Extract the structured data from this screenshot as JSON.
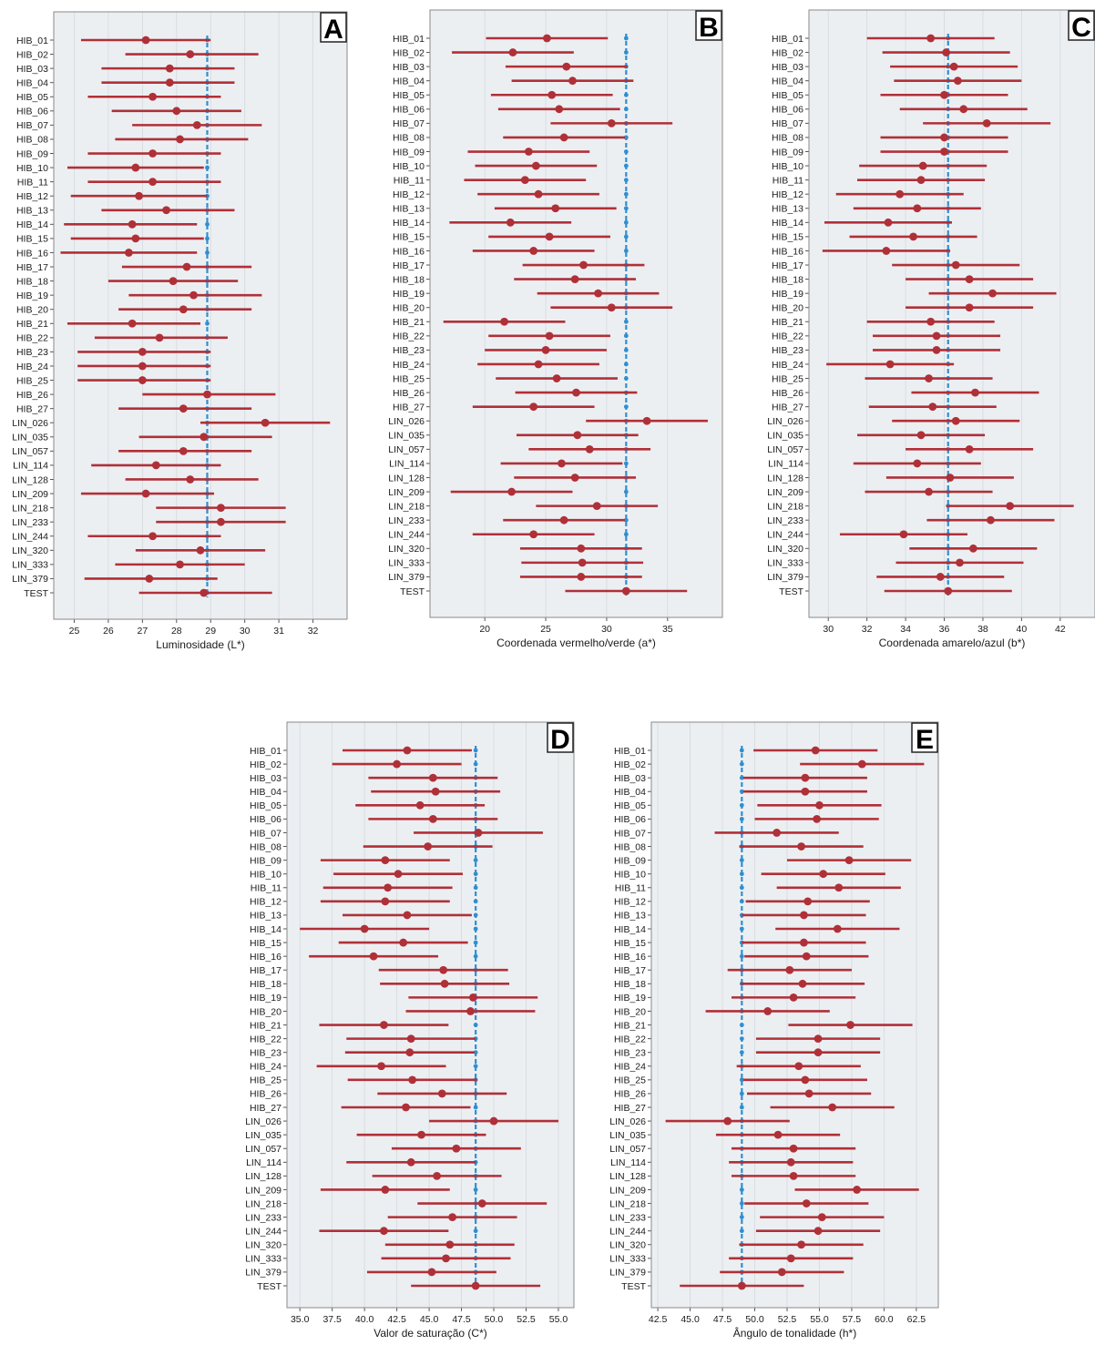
{
  "figure": {
    "background": "#ffffff",
    "plot_background": "#eceff2",
    "grid_color": "#d4d8dd",
    "point_color": "#b03038",
    "ref_color": "#2f8fd0",
    "frame_color": "#8a8a8a"
  },
  "chart_data": [
    {
      "type": "forest",
      "letter": "A",
      "xlabel": "Luminosidade (L*)",
      "xlim": [
        24.4,
        33.0
      ],
      "xticks": [
        25,
        26,
        27,
        28,
        29,
        30,
        31,
        32
      ],
      "tick_labels": [
        "25",
        "26",
        "27",
        "28",
        "29",
        "30",
        "31",
        "32"
      ],
      "reference": 28.9,
      "categories": [
        "HIB_01",
        "HIB_02",
        "HIB_03",
        "HIB_04",
        "HIB_05",
        "HIB_06",
        "HIB_07",
        "HIB_08",
        "HIB_09",
        "HIB_10",
        "HIB_11",
        "HIB_12",
        "HIB_13",
        "HIB_14",
        "HIB_15",
        "HIB_16",
        "HIB_17",
        "HIB_18",
        "HIB_19",
        "HIB_20",
        "HIB_21",
        "HIB_22",
        "HIB_23",
        "HIB_24",
        "HIB_25",
        "HIB_26",
        "HIB_27",
        "LIN_026",
        "LIN_035",
        "LIN_057",
        "LIN_114",
        "LIN_128",
        "LIN_209",
        "LIN_218",
        "LIN_233",
        "LIN_244",
        "LIN_320",
        "LIN_333",
        "LIN_379",
        "TEST"
      ],
      "estimate": [
        27.1,
        28.4,
        27.8,
        27.8,
        27.3,
        28.0,
        28.6,
        28.1,
        27.3,
        26.8,
        27.3,
        26.9,
        27.7,
        26.7,
        26.8,
        26.6,
        28.3,
        27.9,
        28.5,
        28.2,
        26.7,
        27.5,
        27.0,
        27.0,
        27.0,
        28.9,
        28.2,
        30.6,
        28.8,
        28.2,
        27.4,
        28.4,
        27.1,
        29.3,
        29.3,
        27.3,
        28.7,
        28.1,
        27.2,
        28.8
      ],
      "lower": [
        25.2,
        26.5,
        25.8,
        25.8,
        25.4,
        26.1,
        26.7,
        26.2,
        25.4,
        24.8,
        25.4,
        24.9,
        25.8,
        24.7,
        24.9,
        24.6,
        26.4,
        26.0,
        26.6,
        26.3,
        24.8,
        25.6,
        25.1,
        25.1,
        25.1,
        27.0,
        26.3,
        28.7,
        26.9,
        26.3,
        25.5,
        26.5,
        25.2,
        27.4,
        27.4,
        25.4,
        26.8,
        26.2,
        25.3,
        26.9
      ],
      "upper": [
        29.0,
        30.4,
        29.7,
        29.7,
        29.3,
        29.9,
        30.5,
        30.1,
        29.3,
        28.8,
        29.3,
        28.9,
        29.7,
        28.6,
        28.8,
        28.6,
        30.2,
        29.8,
        30.5,
        30.2,
        28.7,
        29.5,
        29.0,
        29.0,
        29.0,
        30.9,
        30.2,
        32.5,
        30.8,
        30.2,
        29.3,
        30.4,
        29.1,
        31.2,
        31.2,
        29.3,
        30.6,
        30.0,
        29.2,
        30.8
      ]
    },
    {
      "type": "forest",
      "letter": "B",
      "xlabel": "Coordenada vermelho/verde (a*)",
      "xlim": [
        15.5,
        39.5
      ],
      "xticks": [
        20,
        25,
        30,
        35
      ],
      "tick_labels": [
        "20",
        "25",
        "30",
        "35"
      ],
      "reference": 31.6,
      "categories": [
        "HIB_01",
        "HIB_02",
        "HIB_03",
        "HIB_04",
        "HIB_05",
        "HIB_06",
        "HIB_07",
        "HIB_08",
        "HIB_09",
        "HIB_10",
        "HIB_11",
        "HIB_12",
        "HIB_13",
        "HIB_14",
        "HIB_15",
        "HIB_16",
        "HIB_17",
        "HIB_18",
        "HIB_19",
        "HIB_20",
        "HIB_21",
        "HIB_22",
        "HIB_23",
        "HIB_24",
        "HIB_25",
        "HIB_26",
        "HIB_27",
        "LIN_026",
        "LIN_035",
        "LIN_057",
        "LIN_114",
        "LIN_128",
        "LIN_209",
        "LIN_218",
        "LIN_233",
        "LIN_244",
        "LIN_320",
        "LIN_333",
        "LIN_379",
        "TEST"
      ],
      "estimate": [
        25.1,
        22.3,
        26.7,
        27.2,
        25.5,
        26.1,
        30.4,
        26.5,
        23.6,
        24.2,
        23.3,
        24.4,
        25.8,
        22.1,
        25.3,
        24.0,
        28.1,
        27.4,
        29.3,
        30.4,
        21.6,
        25.3,
        25.0,
        24.4,
        25.9,
        27.5,
        24.0,
        33.3,
        27.6,
        28.6,
        26.3,
        27.4,
        22.2,
        29.2,
        26.5,
        24.0,
        27.9,
        28.0,
        27.9,
        31.6
      ],
      "lower": [
        20.1,
        17.3,
        21.7,
        22.2,
        20.5,
        21.1,
        25.4,
        21.5,
        18.6,
        19.2,
        18.3,
        19.4,
        20.8,
        17.1,
        20.3,
        19.0,
        23.1,
        22.4,
        24.3,
        25.4,
        16.6,
        20.3,
        20.0,
        19.4,
        20.9,
        22.5,
        19.0,
        28.3,
        22.6,
        23.6,
        21.3,
        22.4,
        17.2,
        24.2,
        21.5,
        19.0,
        22.9,
        23.0,
        22.9,
        26.6
      ],
      "upper": [
        30.1,
        27.3,
        31.7,
        32.2,
        30.5,
        31.1,
        35.4,
        31.5,
        28.6,
        29.2,
        28.3,
        29.4,
        30.8,
        27.1,
        30.3,
        29.0,
        33.1,
        32.4,
        34.3,
        35.4,
        26.6,
        30.3,
        30.0,
        29.4,
        30.9,
        32.5,
        29.0,
        38.3,
        32.6,
        33.6,
        31.3,
        32.4,
        27.2,
        34.2,
        31.5,
        29.0,
        32.9,
        33.0,
        32.9,
        36.6
      ]
    },
    {
      "type": "forest",
      "letter": "C",
      "xlabel": "Coordenada amarelo/azul (b*)",
      "xlim": [
        29.0,
        43.8
      ],
      "xticks": [
        30,
        32,
        34,
        36,
        38,
        40,
        42
      ],
      "tick_labels": [
        "30",
        "32",
        "34",
        "36",
        "38",
        "40",
        "42"
      ],
      "reference": 36.2,
      "categories": [
        "HIB_01",
        "HIB_02",
        "HIB_03",
        "HIB_04",
        "HIB_05",
        "HIB_06",
        "HIB_07",
        "HIB_08",
        "HIB_09",
        "HIB_10",
        "HIB_11",
        "HIB_12",
        "HIB_13",
        "HIB_14",
        "HIB_15",
        "HIB_16",
        "HIB_17",
        "HIB_18",
        "HIB_19",
        "HIB_20",
        "HIB_21",
        "HIB_22",
        "HIB_23",
        "HIB_24",
        "HIB_25",
        "HIB_26",
        "HIB_27",
        "LIN_026",
        "LIN_035",
        "LIN_057",
        "LIN_114",
        "LIN_128",
        "LIN_209",
        "LIN_218",
        "LIN_233",
        "LIN_244",
        "LIN_320",
        "LIN_333",
        "LIN_379",
        "TEST"
      ],
      "estimate": [
        35.3,
        36.1,
        36.5,
        36.7,
        36.0,
        37.0,
        38.2,
        36.0,
        36.0,
        34.9,
        34.8,
        33.7,
        34.6,
        33.1,
        34.4,
        33.0,
        36.6,
        37.3,
        38.5,
        37.3,
        35.3,
        35.6,
        35.6,
        33.2,
        35.2,
        37.6,
        35.4,
        36.6,
        34.8,
        37.3,
        34.6,
        36.3,
        35.2,
        39.4,
        38.4,
        33.9,
        37.5,
        36.8,
        35.8,
        36.2
      ],
      "lower": [
        32.0,
        32.8,
        33.2,
        33.4,
        32.7,
        33.7,
        34.9,
        32.7,
        32.7,
        31.6,
        31.5,
        30.4,
        31.3,
        29.8,
        31.1,
        29.7,
        33.3,
        34.0,
        35.2,
        34.0,
        32.0,
        32.3,
        32.3,
        29.9,
        31.9,
        34.3,
        32.1,
        33.3,
        31.5,
        34.0,
        31.3,
        33.0,
        31.9,
        36.1,
        35.1,
        30.6,
        34.2,
        33.5,
        32.5,
        32.9
      ],
      "upper": [
        38.6,
        39.4,
        39.8,
        40.0,
        39.3,
        40.3,
        41.5,
        39.3,
        39.3,
        38.2,
        38.1,
        37.0,
        37.9,
        36.4,
        37.7,
        36.3,
        39.9,
        40.6,
        41.8,
        40.6,
        38.6,
        38.9,
        38.9,
        36.5,
        38.5,
        40.9,
        38.7,
        39.9,
        38.1,
        40.6,
        37.9,
        39.6,
        38.5,
        42.7,
        41.7,
        37.2,
        40.8,
        40.1,
        39.1,
        39.5
      ]
    },
    {
      "type": "forest",
      "letter": "D",
      "xlabel": "Valor de saturação (C*)",
      "xlim": [
        34.0,
        56.2
      ],
      "xticks": [
        35.0,
        37.5,
        40.0,
        42.5,
        45.0,
        47.5,
        50.0,
        52.5,
        55.0
      ],
      "tick_labels": [
        "35.0",
        "37.5",
        "40.0",
        "42.5",
        "45.0",
        "47.5",
        "50.0",
        "52.5",
        "55.0"
      ],
      "reference": 48.6,
      "categories": [
        "HIB_01",
        "HIB_02",
        "HIB_03",
        "HIB_04",
        "HIB_05",
        "HIB_06",
        "HIB_07",
        "HIB_08",
        "HIB_09",
        "HIB_10",
        "HIB_11",
        "HIB_12",
        "HIB_13",
        "HIB_14",
        "HIB_15",
        "HIB_16",
        "HIB_17",
        "HIB_18",
        "HIB_19",
        "HIB_20",
        "HIB_21",
        "HIB_22",
        "HIB_23",
        "HIB_24",
        "HIB_25",
        "HIB_26",
        "HIB_27",
        "LIN_026",
        "LIN_035",
        "LIN_057",
        "LIN_114",
        "LIN_128",
        "LIN_209",
        "LIN_218",
        "LIN_233",
        "LIN_244",
        "LIN_320",
        "LIN_333",
        "LIN_379",
        "TEST"
      ],
      "estimate": [
        43.3,
        42.5,
        45.3,
        45.5,
        44.3,
        45.3,
        48.8,
        44.9,
        41.6,
        42.6,
        41.8,
        41.6,
        43.3,
        40.0,
        43.0,
        40.7,
        46.1,
        46.2,
        48.4,
        48.2,
        41.5,
        43.6,
        43.5,
        41.3,
        43.7,
        46.0,
        43.2,
        50.0,
        44.4,
        47.1,
        43.6,
        45.6,
        41.6,
        49.1,
        46.8,
        41.5,
        46.6,
        46.3,
        45.2,
        48.6
      ],
      "lower": [
        38.3,
        37.5,
        40.3,
        40.5,
        39.3,
        40.3,
        43.8,
        39.9,
        36.6,
        37.6,
        36.8,
        36.6,
        38.3,
        35.0,
        38.0,
        35.7,
        41.1,
        41.2,
        43.4,
        43.2,
        36.5,
        38.6,
        38.5,
        36.3,
        38.7,
        41.0,
        38.2,
        45.0,
        39.4,
        42.1,
        38.6,
        40.6,
        36.6,
        44.1,
        41.8,
        36.5,
        41.6,
        41.3,
        40.2,
        43.6
      ],
      "upper": [
        48.3,
        47.5,
        50.3,
        50.5,
        49.3,
        50.3,
        53.8,
        49.9,
        46.6,
        47.6,
        46.8,
        46.6,
        48.3,
        45.0,
        48.0,
        45.7,
        51.1,
        51.2,
        53.4,
        53.2,
        46.5,
        48.6,
        48.5,
        46.3,
        48.7,
        51.0,
        48.2,
        55.0,
        49.4,
        52.1,
        48.6,
        50.6,
        46.6,
        54.1,
        51.8,
        46.5,
        51.6,
        51.3,
        50.2,
        53.6
      ]
    },
    {
      "type": "forest",
      "letter": "E",
      "xlabel": "Ângulo de tonalidade (h*)",
      "xlim": [
        42.0,
        64.2
      ],
      "xticks": [
        42.5,
        45.0,
        47.5,
        50.0,
        52.5,
        55.0,
        57.5,
        60.0,
        62.5
      ],
      "tick_labels": [
        "42.5",
        "45.0",
        "47.5",
        "50.0",
        "52.5",
        "55.0",
        "57.5",
        "60.0",
        "62.5"
      ],
      "reference": 49.0,
      "categories": [
        "HIB_01",
        "HIB_02",
        "HIB_03",
        "HIB_04",
        "HIB_05",
        "HIB_06",
        "HIB_07",
        "HIB_08",
        "HIB_09",
        "HIB_10",
        "HIB_11",
        "HIB_12",
        "HIB_13",
        "HIB_14",
        "HIB_15",
        "HIB_16",
        "HIB_17",
        "HIB_18",
        "HIB_19",
        "HIB_20",
        "HIB_21",
        "HIB_22",
        "HIB_23",
        "HIB_24",
        "HIB_25",
        "HIB_26",
        "HIB_27",
        "LIN_026",
        "LIN_035",
        "LIN_057",
        "LIN_114",
        "LIN_128",
        "LIN_209",
        "LIN_218",
        "LIN_233",
        "LIN_244",
        "LIN_320",
        "LIN_333",
        "LIN_379",
        "TEST"
      ],
      "estimate": [
        54.7,
        58.3,
        53.9,
        53.9,
        55.0,
        54.8,
        51.7,
        53.6,
        57.3,
        55.3,
        56.5,
        54.1,
        53.8,
        56.4,
        53.8,
        54.0,
        52.7,
        53.7,
        53.0,
        51.0,
        57.4,
        54.9,
        54.9,
        53.4,
        53.9,
        54.2,
        56.0,
        47.9,
        51.8,
        53.0,
        52.8,
        53.0,
        57.9,
        54.0,
        55.2,
        54.9,
        53.6,
        52.8,
        52.1,
        49.0
      ],
      "lower": [
        49.9,
        53.5,
        49.1,
        49.1,
        50.2,
        50.0,
        46.9,
        48.8,
        52.5,
        50.5,
        51.7,
        49.3,
        49.0,
        51.6,
        49.0,
        49.2,
        47.9,
        48.9,
        48.2,
        46.2,
        52.6,
        50.1,
        50.1,
        48.6,
        49.1,
        49.4,
        51.2,
        43.1,
        47.0,
        48.2,
        48.0,
        48.2,
        53.1,
        49.2,
        50.4,
        50.1,
        48.8,
        48.0,
        47.3,
        44.2
      ],
      "upper": [
        59.5,
        63.1,
        58.7,
        58.7,
        59.8,
        59.6,
        56.5,
        58.4,
        62.1,
        60.1,
        61.3,
        58.9,
        58.6,
        61.2,
        58.6,
        58.8,
        57.5,
        58.5,
        57.8,
        55.8,
        62.2,
        59.7,
        59.7,
        58.2,
        58.7,
        59.0,
        60.8,
        52.7,
        56.6,
        57.8,
        57.6,
        57.8,
        62.7,
        58.8,
        60.0,
        59.7,
        58.4,
        57.6,
        56.9,
        53.8
      ]
    }
  ]
}
